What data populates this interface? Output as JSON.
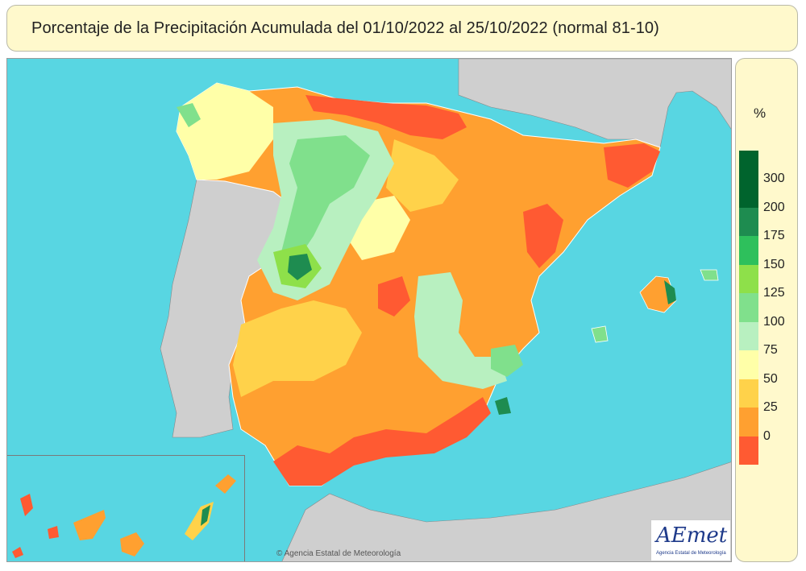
{
  "title": "Porcentaje de la Precipitación Acumulada del 01/10/2022 al 25/10/2022 (normal 81-10)",
  "legend": {
    "unit": "%",
    "classes": [
      {
        "label": "300",
        "color": "#00642d"
      },
      {
        "label": "200",
        "color": "#1e8c50"
      },
      {
        "label": "175",
        "color": "#2ec05c"
      },
      {
        "label": "150",
        "color": "#8ee04a"
      },
      {
        "label": "125",
        "color": "#80e08c"
      },
      {
        "label": "100",
        "color": "#b8f0c0"
      },
      {
        "label": "75",
        "color": "#ffffa8"
      },
      {
        "label": "50",
        "color": "#ffd24a"
      },
      {
        "label": "25",
        "color": "#ffa030"
      },
      {
        "label": "0",
        "color": "#ff5a32"
      }
    ],
    "top_color": "#00642d"
  },
  "map": {
    "sea_color": "#58d6e2",
    "land_other_color": "#cfcfcf",
    "copyright": "© Agencia Estatal de Meteorología"
  },
  "logo": {
    "text": "AEmet",
    "subtitle": "Agencia Estatal de Meteorología"
  }
}
